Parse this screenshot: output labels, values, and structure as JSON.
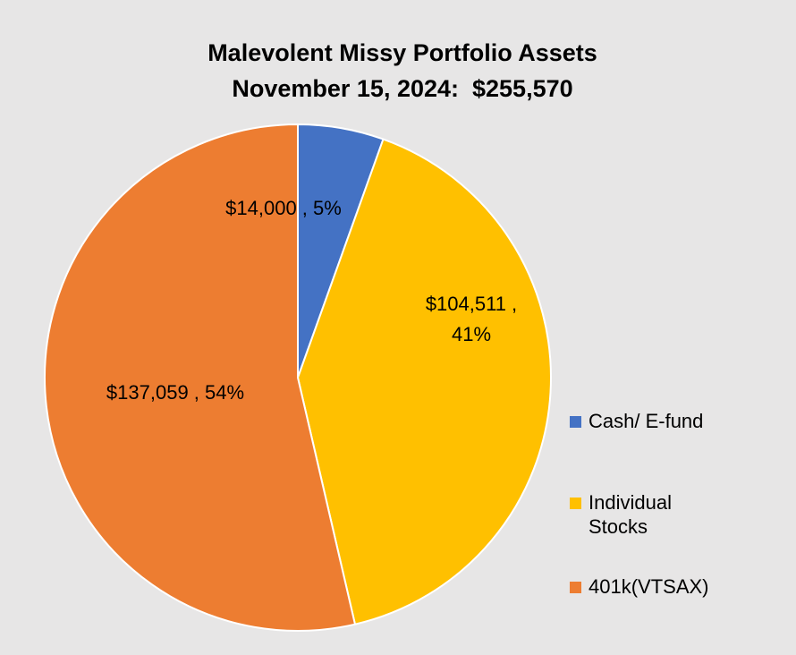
{
  "chart_data": {
    "type": "pie",
    "title": "Malevolent Missy Portfolio Assets",
    "subtitle": "November 15, 2024:  $255,570",
    "slices": [
      {
        "name": "Cash/ E-fund",
        "value": 14000,
        "percent": 5,
        "color": "#4472c4",
        "label": "$14,000 , 5%"
      },
      {
        "name": "Individual Stocks",
        "value": 104511,
        "percent": 41,
        "color": "#ffc000",
        "label": "$104,511 , 41%"
      },
      {
        "name": "401k(VTSAX)",
        "value": 137059,
        "percent": 54,
        "color": "#ed7d31",
        "label": "$137,059 , 54%"
      }
    ],
    "legend": {
      "position": "right",
      "items": [
        {
          "label": "Cash/ E-fund",
          "color": "#4472c4"
        },
        {
          "label": "Individual Stocks",
          "color": "#ffc000"
        },
        {
          "label": "401k(VTSAX)",
          "color": "#ed7d31"
        }
      ]
    }
  }
}
